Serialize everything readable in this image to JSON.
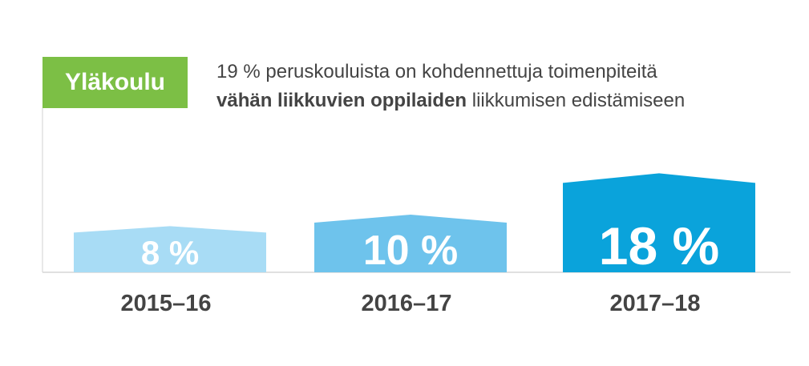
{
  "badge": {
    "label": "Yläkoulu",
    "color": "#7cbf45"
  },
  "headline": {
    "line1": "19 % peruskouluista on kohdennettuja toimenpiteitä",
    "line2_bold": "vähän liikkuvien oppilaiden",
    "line2_rest": "liikkumisen edistämiseen"
  },
  "chart_data": {
    "type": "bar",
    "categories": [
      "2015–16",
      "2016–17",
      "2017–18"
    ],
    "values": [
      8,
      10,
      18
    ],
    "data_labels": [
      "8 %",
      "10 %",
      "18 %"
    ],
    "bar_colors": [
      "#a8dcf5",
      "#6ec3ec",
      "#0aa3db"
    ],
    "title": "",
    "xlabel": "",
    "ylabel": "",
    "ylim": [
      0,
      30
    ],
    "grid": false,
    "legend": "none"
  }
}
